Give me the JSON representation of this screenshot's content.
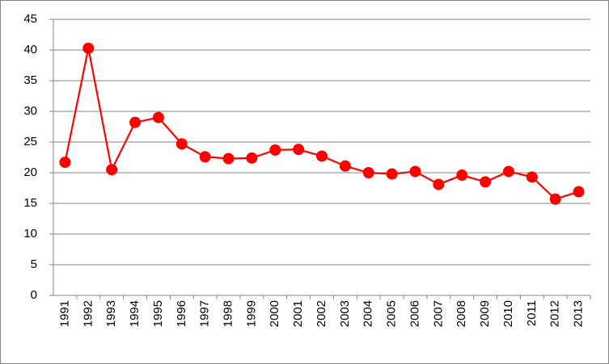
{
  "chart_data": {
    "type": "line",
    "categories": [
      "1991",
      "1992",
      "1993",
      "1994",
      "1995",
      "1996",
      "1997",
      "1998",
      "1999",
      "2000",
      "2001",
      "2002",
      "2003",
      "2004",
      "2005",
      "2006",
      "2007",
      "2008",
      "2009",
      "2010",
      "2011",
      "2012",
      "2013"
    ],
    "values": [
      21.7,
      40.3,
      20.5,
      28.2,
      29.0,
      24.7,
      22.6,
      22.3,
      22.4,
      23.7,
      23.8,
      22.7,
      21.1,
      20.0,
      19.8,
      20.2,
      18.1,
      19.6,
      18.5,
      20.2,
      19.3,
      15.7,
      16.9
    ],
    "color": "#ff0000",
    "ylim": [
      0,
      45
    ],
    "yticks": [
      0,
      5,
      10,
      15,
      20,
      25,
      30,
      35,
      40,
      45
    ],
    "grid": true
  }
}
